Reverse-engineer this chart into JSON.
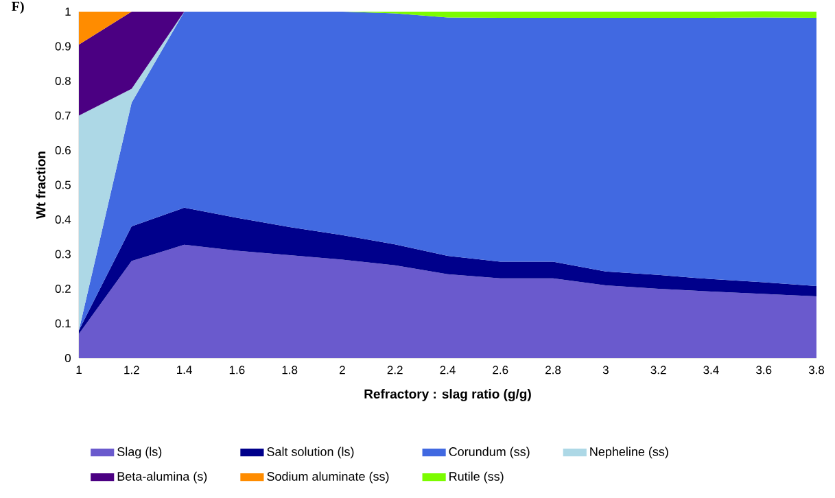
{
  "chart_data": {
    "type": "area",
    "stacked": true,
    "title": "F)",
    "xlabel": "Refractory : slag ratio (g/g)",
    "ylabel": "Wt fraction",
    "legend": "bottom",
    "x": [
      1,
      1.2,
      1.4,
      1.6,
      1.8,
      2,
      2.2,
      2.4,
      2.6,
      2.8,
      3,
      3.2,
      3.4,
      3.6,
      3.8
    ],
    "xlim": [
      1,
      3.8
    ],
    "ylim": [
      0,
      1
    ],
    "xticks": [
      1,
      1.2,
      1.4,
      1.6,
      1.8,
      2,
      2.2,
      2.4,
      2.6,
      2.8,
      3,
      3.2,
      3.4,
      3.6,
      3.8
    ],
    "yticks": [
      0,
      0.1,
      0.2,
      0.3,
      0.4,
      0.5,
      0.6,
      0.7,
      0.8,
      0.9,
      1
    ],
    "series": [
      {
        "name": "Slag (ls)",
        "color": "#6a5acd",
        "values": [
          0.07,
          0.28,
          0.327,
          0.31,
          0.297,
          0.284,
          0.268,
          0.242,
          0.23,
          0.23,
          0.21,
          0.2,
          0.192,
          0.185,
          0.178
        ]
      },
      {
        "name": "Salt solution (ls)",
        "color": "#00008b",
        "values": [
          0.01,
          0.1,
          0.107,
          0.095,
          0.081,
          0.071,
          0.06,
          0.053,
          0.048,
          0.048,
          0.04,
          0.04,
          0.036,
          0.034,
          0.03
        ]
      },
      {
        "name": "Corundum (ss)",
        "color": "#4169e1",
        "values": [
          0,
          0.357,
          0.566,
          0.595,
          0.622,
          0.645,
          0.667,
          0.688,
          0.704,
          0.704,
          0.732,
          0.742,
          0.754,
          0.764,
          0.774
        ]
      },
      {
        "name": "Nepheline (ss)",
        "color": "#add8e6",
        "values": [
          0.62,
          0.04,
          0,
          null,
          null,
          null,
          null,
          null,
          null,
          null,
          null,
          null,
          null,
          null,
          null
        ]
      },
      {
        "name": "Beta-alumina (s)",
        "color": "#4b0082",
        "values": [
          0.205,
          0.223,
          0,
          null,
          null,
          null,
          null,
          null,
          null,
          null,
          null,
          null,
          null,
          null,
          null
        ]
      },
      {
        "name": "Sodium aluminate (ss)",
        "color": "#ff8c00",
        "values": [
          0.095,
          0,
          null,
          null,
          null,
          null,
          null,
          null,
          null,
          null,
          null,
          null,
          null,
          null,
          null
        ]
      },
      {
        "name": "Rutile (ss)",
        "color": "#7cfc00",
        "values": [
          null,
          null,
          null,
          null,
          null,
          0,
          0.005,
          0.017,
          0.018,
          0.018,
          0.018,
          0.018,
          0.018,
          0.018,
          0.018
        ]
      }
    ]
  }
}
